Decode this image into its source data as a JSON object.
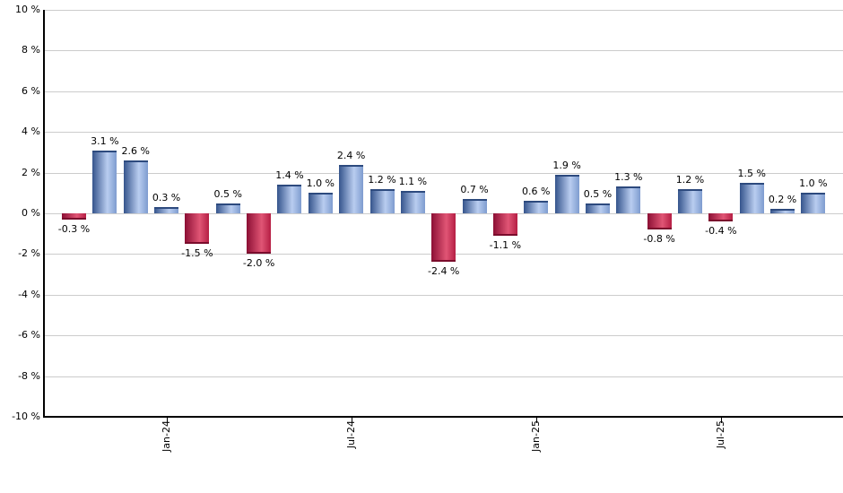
{
  "chart_data": {
    "type": "bar",
    "title": "",
    "xlabel": "",
    "ylabel": "",
    "ylim": [
      -10,
      10
    ],
    "y_step": 2,
    "grid": true,
    "legend": null,
    "y_tick_labels": [
      "10 %",
      "8 %",
      "6 %",
      "4 %",
      "2 %",
      "0 %",
      "-2 %",
      "-4 %",
      "-6 %",
      "-8 %",
      "-10 %"
    ],
    "bars": [
      {
        "value": -0.3,
        "label": "-0.3 %"
      },
      {
        "value": 3.1,
        "label": "3.1 %"
      },
      {
        "value": 2.6,
        "label": "2.6 %"
      },
      {
        "value": 0.3,
        "label": "0.3 %"
      },
      {
        "value": -1.5,
        "label": "-1.5 %"
      },
      {
        "value": 0.5,
        "label": "0.5 %"
      },
      {
        "value": -2.0,
        "label": "-2.0 %"
      },
      {
        "value": 1.4,
        "label": "1.4 %"
      },
      {
        "value": 1.0,
        "label": "1.0 %"
      },
      {
        "value": 2.4,
        "label": "2.4 %"
      },
      {
        "value": 1.2,
        "label": "1.2 %"
      },
      {
        "value": 1.1,
        "label": "1.1 %"
      },
      {
        "value": -2.4,
        "label": "-2.4 %"
      },
      {
        "value": 0.7,
        "label": "0.7 %"
      },
      {
        "value": -1.1,
        "label": "-1.1 %"
      },
      {
        "value": 0.6,
        "label": "0.6 %"
      },
      {
        "value": 1.9,
        "label": "1.9 %"
      },
      {
        "value": 0.5,
        "label": "0.5 %"
      },
      {
        "value": 1.3,
        "label": "1.3 %"
      },
      {
        "value": -0.8,
        "label": "-0.8 %"
      },
      {
        "value": 1.2,
        "label": "1.2 %"
      },
      {
        "value": -0.4,
        "label": "-0.4 %"
      },
      {
        "value": 1.5,
        "label": "1.5 %"
      },
      {
        "value": 0.2,
        "label": "0.2 %"
      },
      {
        "value": 1.0,
        "label": "1.0 %"
      }
    ],
    "x_ticks": [
      {
        "bar_index": 3,
        "label": "Jan-24"
      },
      {
        "bar_index": 9,
        "label": "Jul-24"
      },
      {
        "bar_index": 15,
        "label": "Jan-25"
      },
      {
        "bar_index": 21,
        "label": "Jul-25"
      }
    ],
    "colors": {
      "positive_gradient": [
        "#35548c",
        "#b9cdf0",
        "#7e9ccf"
      ],
      "positive_cap": "#2d4a7e",
      "negative_gradient": [
        "#8c0f34",
        "#e05575",
        "#b51e44"
      ],
      "negative_cap": "#7a0c2c",
      "gridline": "#cccccc",
      "axis": "#000000",
      "text": "#000000",
      "background": "#ffffff"
    }
  }
}
